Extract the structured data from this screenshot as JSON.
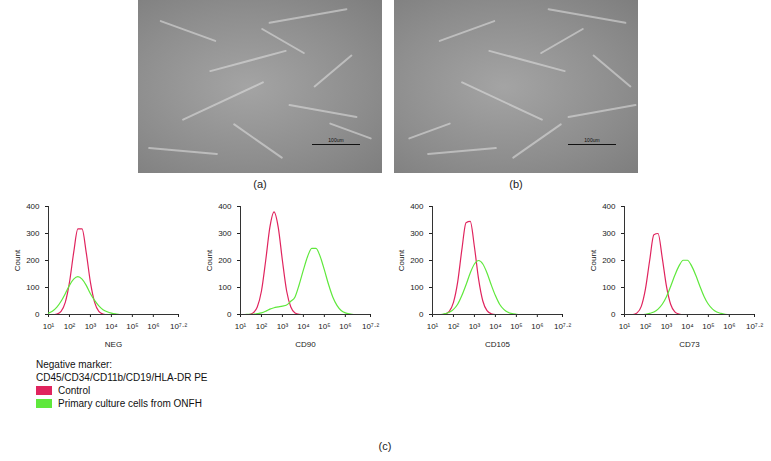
{
  "figure": {
    "image_panels": [
      {
        "label": "(a)",
        "scale_bar": "100um"
      },
      {
        "label": "(b)",
        "scale_bar": "100um"
      }
    ],
    "chart_panel_label": "(c)",
    "legend_title": [
      "Negative marker:",
      "CD45/CD34/CD11b/CD19/HLA-DR PE"
    ]
  },
  "chart_data": [
    {
      "type": "line",
      "xlabel": "NEG",
      "ylabel": "Count",
      "log": "x",
      "legend": "bottom-left",
      "x": [
        10,
        15.85,
        25.12,
        39.81,
        63.1,
        100,
        158.5,
        251.2,
        398.1,
        631,
        1000,
        1585,
        2512,
        3981,
        6310,
        10000,
        15849,
        25119,
        39811,
        63096,
        100000,
        158489,
        251189,
        398107,
        630957,
        1000000,
        1584893,
        2511886,
        3981072,
        6309573,
        10000000,
        15848932
      ],
      "xlim": [
        10,
        15848932
      ],
      "xticks": [
        {
          "value": 10,
          "label": "10¹"
        },
        {
          "value": 100,
          "label": "10²"
        },
        {
          "value": 1000,
          "label": "10³"
        },
        {
          "value": 10000,
          "label": "10⁴"
        },
        {
          "value": 100000,
          "label": "10⁵"
        },
        {
          "value": 1000000,
          "label": "10⁶"
        },
        {
          "value": 15848932,
          "label": "10⁷·²"
        }
      ],
      "ylim": [
        0,
        400
      ],
      "yticks": [
        0,
        100,
        200,
        300,
        400
      ],
      "series": [
        {
          "name": "Control",
          "color": "#e0245e",
          "values": [
            0,
            0,
            2,
            12,
            45,
            119,
            229,
            317,
            317,
            229,
            119,
            45,
            12,
            2,
            0,
            0,
            0,
            0,
            0,
            0,
            0,
            0,
            0,
            0,
            0,
            0,
            0,
            0,
            0,
            0,
            0,
            0
          ]
        },
        {
          "name": "Primary culture cells from ONFH",
          "color": "#5fe83c",
          "values": [
            5,
            13,
            27,
            49,
            77,
            108,
            131,
            140,
            131,
            108,
            77,
            52,
            32,
            18,
            10,
            5,
            2,
            0,
            0,
            0,
            0,
            0,
            0,
            0,
            0,
            0,
            0,
            0,
            0,
            0,
            0,
            0
          ]
        }
      ]
    },
    {
      "type": "line",
      "xlabel": "CD90",
      "ylabel": "Count",
      "log": "x",
      "x": [
        10,
        15.85,
        25.12,
        39.81,
        63.1,
        100,
        158.5,
        251.2,
        398.1,
        631,
        1000,
        1585,
        2512,
        3981,
        6310,
        10000,
        15849,
        25119,
        39811,
        63096,
        100000,
        158489,
        251189,
        398107,
        630957,
        1000000,
        1584893,
        2511886,
        3981072,
        6309573,
        10000000,
        15848932
      ],
      "xlim": [
        10,
        15848932
      ],
      "xticks": [
        {
          "value": 10,
          "label": "10¹"
        },
        {
          "value": 100,
          "label": "10²"
        },
        {
          "value": 1000,
          "label": "10³"
        },
        {
          "value": 10000,
          "label": "10⁴"
        },
        {
          "value": 100000,
          "label": "10⁵"
        },
        {
          "value": 1000000,
          "label": "10⁶"
        },
        {
          "value": 15848932,
          "label": "10⁷·²"
        }
      ],
      "ylim": [
        0,
        400
      ],
      "yticks": [
        0,
        100,
        200,
        300,
        400
      ],
      "series": [
        {
          "name": "Control",
          "color": "#e0245e",
          "values": [
            0,
            0,
            0,
            6,
            28,
            87,
            199,
            323,
            380,
            323,
            199,
            87,
            28,
            6,
            1,
            0,
            0,
            0,
            0,
            0,
            0,
            0,
            0,
            0,
            0,
            0,
            0,
            0,
            0,
            0,
            0,
            0
          ]
        },
        {
          "name": "Primary culture cells from ONFH",
          "color": "#5fe83c",
          "values": [
            0,
            0,
            1,
            1,
            3,
            6,
            12,
            20,
            25,
            28,
            31,
            35,
            49,
            65,
            111,
            165,
            215,
            245,
            245,
            215,
            165,
            111,
            65,
            34,
            15,
            6,
            2,
            0,
            0,
            0,
            0,
            0
          ]
        }
      ]
    },
    {
      "type": "line",
      "xlabel": "CD105",
      "ylabel": "Count",
      "log": "x",
      "x": [
        10,
        15.85,
        25.12,
        39.81,
        63.1,
        100,
        158.5,
        251.2,
        398.1,
        631,
        1000,
        1585,
        2512,
        3981,
        6310,
        10000,
        15849,
        25119,
        39811,
        63096,
        100000,
        158489,
        251189,
        398107,
        630957,
        1000000,
        1584893,
        2511886,
        3981072,
        6309573,
        10000000,
        15848932
      ],
      "xlim": [
        10,
        15848932
      ],
      "xticks": [
        {
          "value": 10,
          "label": "10¹"
        },
        {
          "value": 100,
          "label": "10²"
        },
        {
          "value": 1000,
          "label": "10³"
        },
        {
          "value": 10000,
          "label": "10⁴"
        },
        {
          "value": 100000,
          "label": "10⁵"
        },
        {
          "value": 1000000,
          "label": "10⁶"
        },
        {
          "value": 15848932,
          "label": "10⁷·²"
        }
      ],
      "ylim": [
        0,
        400
      ],
      "yticks": [
        0,
        100,
        200,
        300,
        400
      ],
      "series": [
        {
          "name": "Control",
          "color": "#e0245e",
          "values": [
            0,
            0,
            0,
            2,
            12,
            45,
            120,
            240,
            340,
            345,
            250,
            130,
            50,
            14,
            3,
            0,
            0,
            0,
            0,
            0,
            0,
            0,
            0,
            0,
            0,
            0,
            0,
            0,
            0,
            0,
            0,
            0
          ]
        },
        {
          "name": "Primary culture cells from ONFH",
          "color": "#5fe83c",
          "values": [
            0,
            0,
            0,
            3,
            8,
            19,
            38,
            70,
            110,
            154,
            187,
            200,
            187,
            154,
            110,
            70,
            38,
            19,
            8,
            3,
            1,
            0,
            0,
            0,
            0,
            0,
            0,
            0,
            0,
            0,
            0,
            0
          ]
        }
      ]
    },
    {
      "type": "line",
      "xlabel": "CD73",
      "ylabel": "Count",
      "log": "x",
      "x": [
        10,
        15.85,
        25.12,
        39.81,
        63.1,
        100,
        158.5,
        251.2,
        398.1,
        631,
        1000,
        1585,
        2512,
        3981,
        6310,
        10000,
        15849,
        25119,
        39811,
        63096,
        100000,
        158489,
        251189,
        398107,
        630957,
        1000000,
        1584893,
        2511886,
        3981072,
        6309573,
        10000000,
        15848932
      ],
      "xlim": [
        10,
        15848932
      ],
      "xticks": [
        {
          "value": 10,
          "label": "10¹"
        },
        {
          "value": 100,
          "label": "10²"
        },
        {
          "value": 1000,
          "label": "10³"
        },
        {
          "value": 10000,
          "label": "10⁴"
        },
        {
          "value": 100000,
          "label": "10⁵"
        },
        {
          "value": 1000000,
          "label": "10⁶"
        },
        {
          "value": 15848932,
          "label": "10⁷·²"
        }
      ],
      "ylim": [
        0,
        400
      ],
      "yticks": [
        0,
        100,
        200,
        300,
        400
      ],
      "series": [
        {
          "name": "Control",
          "color": "#e0245e",
          "values": [
            0,
            0,
            0,
            6,
            30,
            95,
            200,
            295,
            300,
            210,
            105,
            38,
            10,
            2,
            0,
            0,
            0,
            0,
            0,
            0,
            0,
            0,
            0,
            0,
            0,
            0,
            0,
            0,
            0,
            0,
            0,
            0
          ]
        },
        {
          "name": "Primary culture cells from ONFH",
          "color": "#5fe83c",
          "values": [
            0,
            0,
            0,
            0,
            0,
            1,
            4,
            9,
            20,
            38,
            66,
            104,
            145,
            180,
            201,
            201,
            180,
            145,
            104,
            66,
            38,
            20,
            9,
            4,
            1,
            0,
            0,
            0,
            0,
            0,
            0,
            0
          ]
        }
      ]
    }
  ]
}
